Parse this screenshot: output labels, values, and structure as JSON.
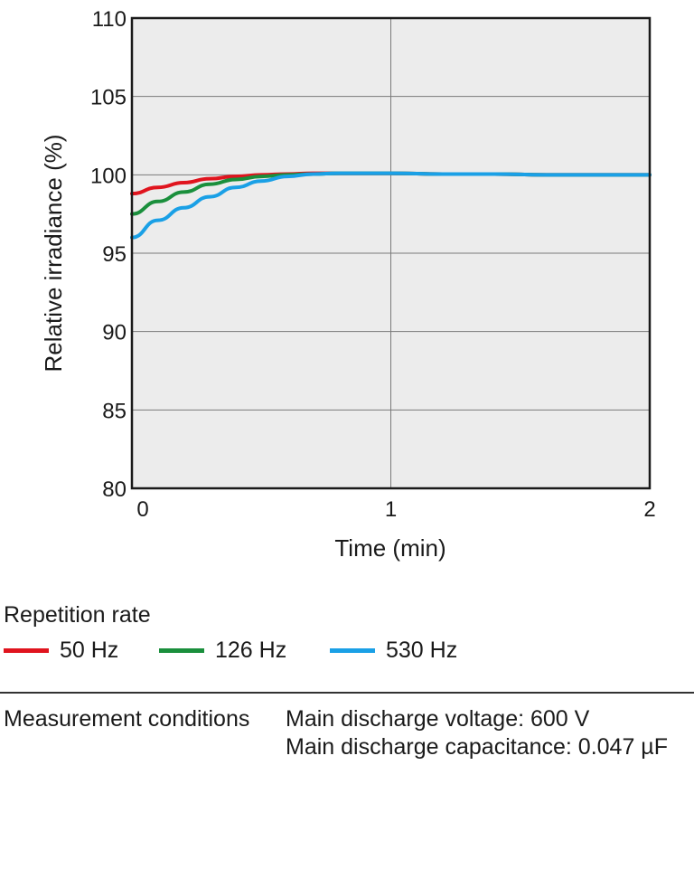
{
  "chart_data": {
    "type": "line",
    "xlabel": "Time (min)",
    "ylabel": "Relative irradiance (%)",
    "xlim": [
      0,
      2
    ],
    "ylim": [
      80,
      110
    ],
    "x_ticks": [
      "0",
      "1",
      "2"
    ],
    "y_ticks": [
      "80",
      "85",
      "90",
      "95",
      "100",
      "105",
      "110"
    ],
    "grid": true,
    "background": "#ececec",
    "series": [
      {
        "name": "50 Hz",
        "color": "#e0141e",
        "x": [
          0,
          0.1,
          0.2,
          0.3,
          0.4,
          0.5,
          0.6,
          0.7,
          0.8,
          0.9,
          1.0,
          1.2,
          1.4,
          1.6,
          1.8,
          2.0
        ],
        "y": [
          98.8,
          99.2,
          99.5,
          99.75,
          99.9,
          100.0,
          100.05,
          100.1,
          100.1,
          100.1,
          100.1,
          100.05,
          100.05,
          100.0,
          100.0,
          100.0
        ]
      },
      {
        "name": "126 Hz",
        "color": "#1a8f3c",
        "x": [
          0,
          0.1,
          0.2,
          0.3,
          0.4,
          0.5,
          0.6,
          0.7,
          0.8,
          0.9,
          1.0,
          1.2,
          1.4,
          1.6,
          1.8,
          2.0
        ],
        "y": [
          97.5,
          98.3,
          98.9,
          99.4,
          99.7,
          99.9,
          100.0,
          100.05,
          100.1,
          100.1,
          100.1,
          100.05,
          100.05,
          100.0,
          100.0,
          100.0
        ]
      },
      {
        "name": "530 Hz",
        "color": "#1aa0e6",
        "x": [
          0,
          0.1,
          0.2,
          0.3,
          0.4,
          0.5,
          0.6,
          0.7,
          0.8,
          0.9,
          1.0,
          1.2,
          1.4,
          1.6,
          1.8,
          2.0
        ],
        "y": [
          96.0,
          97.1,
          97.9,
          98.6,
          99.2,
          99.6,
          99.9,
          100.05,
          100.1,
          100.1,
          100.1,
          100.05,
          100.05,
          100.0,
          100.0,
          100.0
        ]
      }
    ]
  },
  "legend": {
    "title": "Repetition rate",
    "items": [
      {
        "label": "50 Hz",
        "color": "#e0141e"
      },
      {
        "label": "126 Hz",
        "color": "#1a8f3c"
      },
      {
        "label": "530 Hz",
        "color": "#1aa0e6"
      }
    ]
  },
  "conditions": {
    "label": "Measurement conditions",
    "lines": [
      "Main discharge voltage: 600 V",
      "Main discharge capacitance: 0.047 µF"
    ]
  }
}
